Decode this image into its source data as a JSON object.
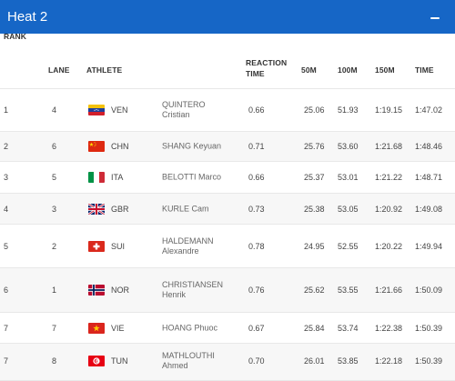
{
  "header": {
    "title": "Heat 2"
  },
  "columns": {
    "rank": "RANK",
    "lane": "LANE",
    "athlete": "ATHLETE",
    "reaction_1": "REACTION",
    "reaction_2": "TIME",
    "m50": "50M",
    "m100": "100M",
    "m150": "150M",
    "time": "TIME"
  },
  "rows": [
    {
      "rank": "1",
      "lane": "4",
      "flag": "venezuela-flag-icon",
      "nat": "VEN",
      "name1": "QUINTERO",
      "name2": "Cristian",
      "reaction": "0.66",
      "m50": "25.06",
      "m100": "51.93",
      "m150": "1:19.15",
      "time": "1:47.02"
    },
    {
      "rank": "2",
      "lane": "6",
      "flag": "china-flag-icon",
      "nat": "CHN",
      "name1": "SHANG Keyuan",
      "name2": "",
      "reaction": "0.71",
      "m50": "25.76",
      "m100": "53.60",
      "m150": "1:21.68",
      "time": "1:48.46"
    },
    {
      "rank": "3",
      "lane": "5",
      "flag": "italy-flag-icon",
      "nat": "ITA",
      "name1": "BELOTTI Marco",
      "name2": "",
      "reaction": "0.66",
      "m50": "25.37",
      "m100": "53.01",
      "m150": "1:21.22",
      "time": "1:48.71"
    },
    {
      "rank": "4",
      "lane": "3",
      "flag": "uk-flag-icon",
      "nat": "GBR",
      "name1": "KURLE Cam",
      "name2": "",
      "reaction": "0.73",
      "m50": "25.38",
      "m100": "53.05",
      "m150": "1:20.92",
      "time": "1:49.08"
    },
    {
      "rank": "5",
      "lane": "2",
      "flag": "switzerland-flag-icon",
      "nat": "SUI",
      "name1": "HALDEMANN",
      "name2": "Alexandre",
      "reaction": "0.78",
      "m50": "24.95",
      "m100": "52.55",
      "m150": "1:20.22",
      "time": "1:49.94"
    },
    {
      "rank": "6",
      "lane": "1",
      "flag": "norway-flag-icon",
      "nat": "NOR",
      "name1": "CHRISTIANSEN",
      "name2": "Henrik",
      "reaction": "0.76",
      "m50": "25.62",
      "m100": "53.55",
      "m150": "1:21.66",
      "time": "1:50.09"
    },
    {
      "rank": "7",
      "lane": "7",
      "flag": "vietnam-flag-icon",
      "nat": "VIE",
      "name1": "HOANG Phuoc",
      "name2": "",
      "reaction": "0.67",
      "m50": "25.84",
      "m100": "53.74",
      "m150": "1:22.38",
      "time": "1:50.39"
    },
    {
      "rank": "7",
      "lane": "8",
      "flag": "tunisia-flag-icon",
      "nat": "TUN",
      "name1": "MATHLOUTHI",
      "name2": "Ahmed",
      "reaction": "0.70",
      "m50": "26.01",
      "m100": "53.85",
      "m150": "1:22.18",
      "time": "1:50.39"
    }
  ],
  "colors": {
    "header_bg": "#1666c6",
    "header_text": "#ffffff"
  }
}
